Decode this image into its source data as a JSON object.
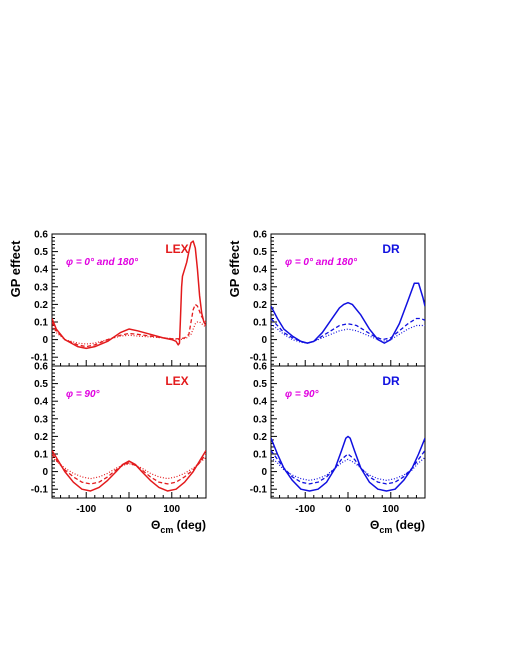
{
  "colors": {
    "LEX": "#e31a1c",
    "DR": "#1010e0",
    "annotation": "#e000e0",
    "axis": "#000000"
  },
  "chart_data": [
    {
      "type": "line",
      "model": "LEX",
      "ylabel": "GP effect",
      "xlabel": "",
      "annotation": "φ = 0° and 180°",
      "xlim": [
        -180,
        180
      ],
      "ylim": [
        -0.15,
        0.6
      ],
      "yticks": [
        "0.6",
        "0.5",
        "0.4",
        "0.3",
        "0.2",
        "0.1",
        "0",
        "-0.1"
      ],
      "xticks": [],
      "series": [
        {
          "style": "solid",
          "x": [
            -180,
            -170,
            -150,
            -120,
            -100,
            -80,
            -50,
            -20,
            0,
            20,
            50,
            80,
            100,
            110,
            115,
            118,
            120,
            123,
            125,
            130,
            135,
            140,
            145,
            150,
            155,
            160,
            165,
            170,
            175,
            180
          ],
          "y": [
            0.12,
            0.06,
            0.0,
            -0.04,
            -0.05,
            -0.04,
            -0.01,
            0.04,
            0.06,
            0.05,
            0.03,
            0.01,
            0.0,
            -0.01,
            -0.03,
            -0.02,
            0.1,
            0.3,
            0.36,
            0.4,
            0.44,
            0.5,
            0.55,
            0.56,
            0.52,
            0.4,
            0.25,
            0.15,
            0.1,
            0.08
          ]
        },
        {
          "style": "dashed",
          "x": [
            -180,
            -170,
            -150,
            -120,
            -100,
            -80,
            -50,
            -20,
            0,
            20,
            50,
            80,
            100,
            120,
            130,
            140,
            145,
            150,
            155,
            160,
            165,
            170,
            175,
            180
          ],
          "y": [
            0.1,
            0.05,
            0.0,
            -0.03,
            -0.04,
            -0.03,
            0.0,
            0.025,
            0.035,
            0.03,
            0.02,
            0.01,
            0.005,
            0.005,
            0.01,
            0.03,
            0.1,
            0.17,
            0.2,
            0.19,
            0.16,
            0.13,
            0.11,
            0.1
          ]
        },
        {
          "style": "dotted",
          "x": [
            -180,
            -170,
            -150,
            -120,
            -100,
            -80,
            -50,
            -20,
            0,
            20,
            50,
            80,
            100,
            120,
            135,
            145,
            150,
            155,
            160,
            165,
            170,
            175,
            180
          ],
          "y": [
            0.08,
            0.04,
            0.0,
            -0.02,
            -0.025,
            -0.02,
            0.0,
            0.02,
            0.025,
            0.02,
            0.015,
            0.01,
            0.005,
            0.0,
            0.01,
            0.03,
            0.06,
            0.09,
            0.1,
            0.1,
            0.09,
            0.08,
            0.07
          ]
        }
      ]
    },
    {
      "type": "line",
      "model": "DR",
      "ylabel": "GP effect",
      "xlabel": "",
      "annotation": "φ = 0° and 180°",
      "xlim": [
        -180,
        180
      ],
      "ylim": [
        -0.15,
        0.6
      ],
      "yticks": [
        "0.6",
        "0.5",
        "0.4",
        "0.3",
        "0.2",
        "0.1",
        "0",
        "-0.1"
      ],
      "xticks": [],
      "series": [
        {
          "style": "solid",
          "x": [
            -180,
            -165,
            -150,
            -130,
            -110,
            -95,
            -80,
            -60,
            -40,
            -20,
            -10,
            0,
            10,
            30,
            50,
            70,
            85,
            100,
            120,
            140,
            155,
            165,
            175,
            180
          ],
          "y": [
            0.19,
            0.12,
            0.06,
            0.02,
            -0.01,
            -0.02,
            -0.01,
            0.04,
            0.11,
            0.18,
            0.2,
            0.21,
            0.2,
            0.14,
            0.06,
            0.0,
            -0.02,
            0.0,
            0.09,
            0.22,
            0.32,
            0.32,
            0.24,
            0.19
          ]
        },
        {
          "style": "dashed",
          "x": [
            -180,
            -165,
            -150,
            -130,
            -110,
            -95,
            -80,
            -60,
            -40,
            -20,
            0,
            20,
            40,
            60,
            80,
            100,
            120,
            140,
            160,
            170,
            180
          ],
          "y": [
            0.12,
            0.08,
            0.04,
            0.01,
            -0.01,
            -0.02,
            -0.01,
            0.02,
            0.05,
            0.08,
            0.09,
            0.08,
            0.05,
            0.02,
            0.0,
            0.01,
            0.05,
            0.09,
            0.12,
            0.12,
            0.11
          ]
        },
        {
          "style": "dotted",
          "x": [
            -180,
            -165,
            -150,
            -130,
            -110,
            -95,
            -80,
            -60,
            -40,
            -20,
            0,
            20,
            40,
            60,
            80,
            100,
            120,
            140,
            160,
            170,
            180
          ],
          "y": [
            0.09,
            0.06,
            0.03,
            0.0,
            -0.015,
            -0.02,
            -0.01,
            0.01,
            0.03,
            0.05,
            0.06,
            0.05,
            0.03,
            0.01,
            -0.01,
            0.0,
            0.03,
            0.06,
            0.08,
            0.08,
            0.08
          ]
        }
      ]
    },
    {
      "type": "line",
      "model": "LEX",
      "ylabel": "",
      "xlabel": "Θcm (deg)",
      "annotation": "φ = 90°",
      "xlim": [
        -180,
        180
      ],
      "ylim": [
        -0.15,
        0.6
      ],
      "yticks": [
        "0.6",
        "0.5",
        "0.4",
        "0.3",
        "0.2",
        "0.1",
        "0",
        "-0.1"
      ],
      "xticks": [
        "-100",
        "0",
        "100"
      ],
      "series": [
        {
          "style": "solid",
          "x": [
            -180,
            -165,
            -150,
            -130,
            -110,
            -90,
            -70,
            -50,
            -30,
            -15,
            0,
            15,
            30,
            50,
            70,
            90,
            110,
            130,
            150,
            165,
            180
          ],
          "y": [
            0.12,
            0.06,
            0.0,
            -0.06,
            -0.1,
            -0.11,
            -0.09,
            -0.05,
            0.0,
            0.04,
            0.06,
            0.04,
            0.0,
            -0.05,
            -0.09,
            -0.11,
            -0.1,
            -0.06,
            0.0,
            0.06,
            0.12
          ]
        },
        {
          "style": "dashed",
          "x": [
            -180,
            -165,
            -150,
            -130,
            -110,
            -90,
            -70,
            -50,
            -30,
            -15,
            0,
            15,
            30,
            50,
            70,
            90,
            110,
            130,
            150,
            165,
            180
          ],
          "y": [
            0.1,
            0.05,
            0.01,
            -0.03,
            -0.06,
            -0.07,
            -0.06,
            -0.03,
            0.01,
            0.035,
            0.05,
            0.035,
            0.01,
            -0.03,
            -0.06,
            -0.07,
            -0.06,
            -0.03,
            0.01,
            0.05,
            0.1
          ]
        },
        {
          "style": "dotted",
          "x": [
            -180,
            -165,
            -150,
            -130,
            -110,
            -90,
            -70,
            -50,
            -30,
            -15,
            0,
            15,
            30,
            50,
            70,
            90,
            110,
            130,
            150,
            165,
            180
          ],
          "y": [
            0.08,
            0.05,
            0.02,
            -0.01,
            -0.03,
            -0.04,
            -0.03,
            -0.01,
            0.02,
            0.035,
            0.045,
            0.035,
            0.02,
            -0.01,
            -0.03,
            -0.04,
            -0.03,
            -0.01,
            0.02,
            0.05,
            0.08
          ]
        }
      ]
    },
    {
      "type": "line",
      "model": "DR",
      "ylabel": "",
      "xlabel": "Θcm (deg)",
      "annotation": "φ = 90°",
      "xlim": [
        -180,
        180
      ],
      "ylim": [
        -0.15,
        0.6
      ],
      "yticks": [
        "0.6",
        "0.5",
        "0.4",
        "0.3",
        "0.2",
        "0.1",
        "0",
        "-0.1"
      ],
      "xticks": [
        "-100",
        "0",
        "100"
      ],
      "series": [
        {
          "style": "solid",
          "x": [
            -180,
            -165,
            -150,
            -130,
            -110,
            -90,
            -70,
            -50,
            -30,
            -15,
            -5,
            0,
            5,
            15,
            30,
            50,
            70,
            90,
            110,
            130,
            150,
            165,
            180
          ],
          "y": [
            0.19,
            0.1,
            0.02,
            -0.05,
            -0.1,
            -0.11,
            -0.1,
            -0.06,
            0.02,
            0.12,
            0.19,
            0.2,
            0.19,
            0.12,
            0.02,
            -0.06,
            -0.1,
            -0.11,
            -0.1,
            -0.05,
            0.02,
            0.1,
            0.19
          ]
        },
        {
          "style": "dashed",
          "x": [
            -180,
            -165,
            -150,
            -130,
            -110,
            -90,
            -70,
            -50,
            -30,
            -15,
            0,
            15,
            30,
            50,
            70,
            90,
            110,
            130,
            150,
            165,
            180
          ],
          "y": [
            0.12,
            0.07,
            0.02,
            -0.03,
            -0.06,
            -0.07,
            -0.06,
            -0.03,
            0.02,
            0.07,
            0.1,
            0.07,
            0.02,
            -0.03,
            -0.06,
            -0.07,
            -0.06,
            -0.03,
            0.02,
            0.07,
            0.12
          ]
        },
        {
          "style": "dotted",
          "x": [
            -180,
            -165,
            -150,
            -130,
            -110,
            -90,
            -70,
            -50,
            -30,
            -15,
            0,
            15,
            30,
            50,
            70,
            90,
            110,
            130,
            150,
            165,
            180
          ],
          "y": [
            0.08,
            0.05,
            0.01,
            -0.02,
            -0.04,
            -0.05,
            -0.04,
            -0.02,
            0.02,
            0.05,
            0.07,
            0.05,
            0.02,
            -0.02,
            -0.04,
            -0.05,
            -0.04,
            -0.02,
            0.01,
            0.05,
            0.08
          ]
        }
      ]
    }
  ]
}
